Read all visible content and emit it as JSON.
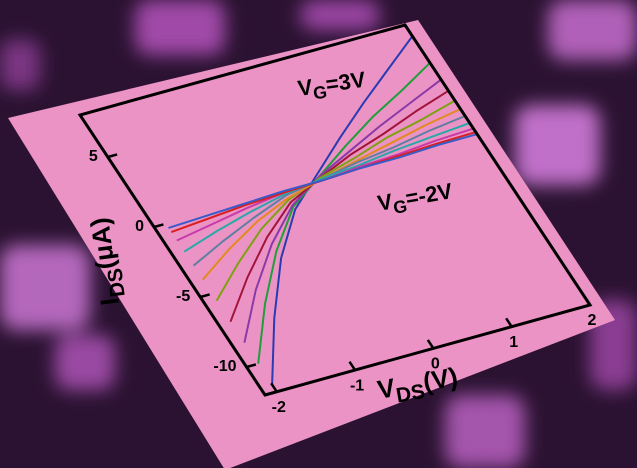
{
  "chart_data": {
    "type": "line",
    "x": [
      -2,
      -1.5,
      -1,
      -0.5,
      0,
      0.5,
      1,
      1.5,
      2
    ],
    "xlim": [
      -2.15,
      2
    ],
    "ylim": [
      -12,
      8
    ],
    "xticks": [
      -2,
      -1,
      0,
      1,
      2
    ],
    "yticks": [
      -10,
      -5,
      0,
      5
    ],
    "xlabel": {
      "main": "V",
      "sub": "DS",
      "unit": "(V)"
    },
    "ylabel": {
      "main": "I",
      "sub": "DS",
      "unit": "(μA)"
    },
    "annotations": [
      {
        "main": "V",
        "sub": "G",
        "rest": "=3V"
      },
      {
        "main": "V",
        "sub": "G",
        "rest": "=-2V"
      }
    ],
    "series": [
      {
        "color": "#2a3bb0",
        "values": [
          -11.5,
          -7.5,
          -4.0,
          -1.3,
          0.5,
          2.3,
          4.0,
          5.6,
          7.2
        ]
      },
      {
        "color": "#1f9e3a",
        "values": [
          -10.0,
          -6.5,
          -3.5,
          -1.1,
          0.3,
          1.7,
          3.0,
          4.1,
          5.3
        ]
      },
      {
        "color": "#8a3aa8",
        "values": [
          -8.5,
          -5.5,
          -3.0,
          -1.0,
          0.3,
          1.3,
          2.3,
          3.2,
          4.1
        ]
      },
      {
        "color": "#a01538",
        "values": [
          -7.0,
          -4.6,
          -2.5,
          -0.8,
          0.2,
          1.1,
          1.8,
          2.6,
          3.3
        ]
      },
      {
        "color": "#7fa010",
        "values": [
          -5.5,
          -3.6,
          -1.9,
          -0.6,
          0.2,
          0.8,
          1.5,
          2.0,
          2.6
        ]
      },
      {
        "color": "#e08a20",
        "values": [
          -4.0,
          -2.6,
          -1.4,
          -0.5,
          0.1,
          0.6,
          1.1,
          1.6,
          2.0
        ]
      },
      {
        "color": "#5f7f9f",
        "values": [
          -3.0,
          -2.0,
          -1.1,
          -0.3,
          0.1,
          0.5,
          0.8,
          1.2,
          1.5
        ]
      },
      {
        "color": "#2aa8a8",
        "values": [
          -2.0,
          -1.3,
          -0.7,
          -0.2,
          0.1,
          0.3,
          0.6,
          0.8,
          1.0
        ]
      },
      {
        "color": "#c83aa8",
        "values": [
          -1.2,
          -0.8,
          -0.4,
          -0.1,
          0.0,
          0.2,
          0.3,
          0.5,
          0.6
        ]
      },
      {
        "color": "#d82020",
        "values": [
          -0.6,
          -0.4,
          -0.2,
          -0.1,
          0.0,
          0.1,
          0.2,
          0.3,
          0.35
        ]
      },
      {
        "color": "#3a5ac8",
        "values": [
          -0.3,
          -0.2,
          -0.1,
          0.0,
          0.0,
          0.1,
          0.1,
          0.2,
          0.2
        ]
      }
    ]
  }
}
